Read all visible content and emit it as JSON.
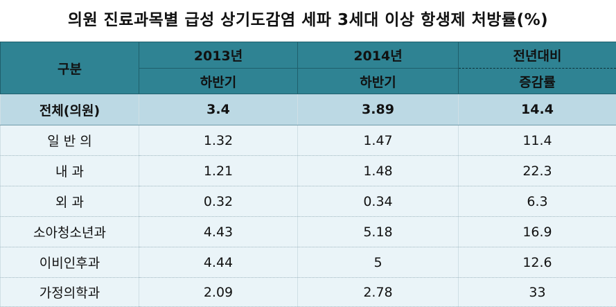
{
  "chart_data": {
    "type": "table",
    "title": "의원 진료과목별 급성 상기도감염 세파 3세대 이상 항생제 처방률(%)",
    "header": {
      "category": "구분",
      "col1": [
        "2013년",
        "하반기"
      ],
      "col2": [
        "2014년",
        "하반기"
      ],
      "col3": [
        "전년대비",
        "증감률"
      ]
    },
    "rows": [
      {
        "label": "전체(의원)",
        "v2013": "3.4",
        "v2014": "3.89",
        "change": "14.4"
      },
      {
        "label": "일 반 의",
        "v2013": "1.32",
        "v2014": "1.47",
        "change": "11.4"
      },
      {
        "label": "내 과",
        "v2013": "1.21",
        "v2014": "1.48",
        "change": "22.3"
      },
      {
        "label": "외 과",
        "v2013": "0.32",
        "v2014": "0.34",
        "change": "6.3"
      },
      {
        "label": "소아청소년과",
        "v2013": "4.43",
        "v2014": "5.18",
        "change": "16.9"
      },
      {
        "label": "이비인후과",
        "v2013": "4.44",
        "v2014": "5",
        "change": "12.6"
      },
      {
        "label": "가정의학과",
        "v2013": "2.09",
        "v2014": "2.78",
        "change": "33"
      }
    ]
  },
  "colors": {
    "header_bg": "#2f8393",
    "total_row_bg": "#bcd9e4",
    "row_bg": "#eaf4f8"
  }
}
